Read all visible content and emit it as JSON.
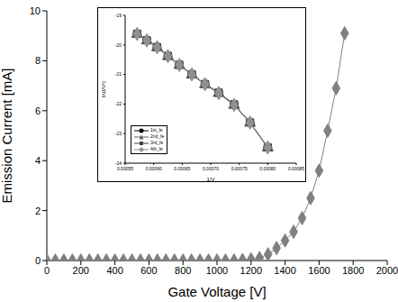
{
  "chart_data": [
    {
      "type": "line",
      "x_label": "Gate Voltage [V]",
      "y_label": "Emission Current [mA]",
      "x": [
        0,
        50,
        100,
        150,
        200,
        250,
        300,
        350,
        400,
        450,
        500,
        550,
        600,
        650,
        700,
        750,
        800,
        850,
        900,
        950,
        1000,
        1050,
        1100,
        1150,
        1200,
        1250,
        1300,
        1350,
        1400,
        1450,
        1500,
        1550,
        1600,
        1650,
        1700,
        1750
      ],
      "values": [
        0,
        0,
        0,
        0,
        0,
        0,
        0,
        0,
        0,
        0,
        0,
        0,
        0,
        0,
        0,
        0,
        0,
        0,
        0,
        0,
        0,
        0,
        0,
        0.02,
        0.05,
        0.1,
        0.25,
        0.5,
        0.8,
        1.15,
        1.7,
        2.5,
        3.6,
        5.2,
        6.9,
        9.1
      ],
      "color": "#808080",
      "marker": "diamond",
      "line_style": "solid",
      "xlim": [
        0,
        2000
      ],
      "xticks": [
        0,
        200,
        400,
        600,
        800,
        1000,
        1200,
        1400,
        1600,
        1800,
        2000
      ],
      "ylim": [
        0,
        10
      ],
      "yticks": [
        0,
        2,
        4,
        6,
        8,
        10
      ],
      "grid": false
    },
    {
      "type": "line",
      "x_label": "1/V",
      "y_label": "ln(I/V²)",
      "x": [
        0.000571,
        0.000588,
        0.000606,
        0.000625,
        0.000645,
        0.000667,
        0.00069,
        0.000714,
        0.000741,
        0.000769,
        0.0008
      ],
      "series": [
        {
          "name": "1st_fe",
          "color": "#000000",
          "marker": "circle",
          "line_style": "solid",
          "values": [
            -19.63,
            -19.85,
            -20.08,
            -20.38,
            -20.68,
            -21.0,
            -21.33,
            -21.62,
            -22.02,
            -22.63,
            -23.47
          ]
        },
        {
          "name": "2nd_fe",
          "color": "#606060",
          "marker": "triangle",
          "line_style": "solid",
          "values": [
            -19.64,
            -19.86,
            -20.09,
            -20.39,
            -20.69,
            -21.01,
            -21.34,
            -21.64,
            -22.04,
            -22.64,
            -23.48
          ]
        },
        {
          "name": "3rd_fe",
          "color": "#404040",
          "marker": "square",
          "line_style": "solid",
          "values": [
            -19.62,
            -19.84,
            -20.07,
            -20.37,
            -20.67,
            -20.99,
            -21.32,
            -21.61,
            -22.01,
            -22.62,
            -23.46
          ]
        },
        {
          "name": "4th_fe",
          "color": "#909090",
          "marker": "diamond",
          "line_style": "solid",
          "values": [
            -19.63,
            -19.85,
            -20.08,
            -20.38,
            -20.68,
            -21.0,
            -21.33,
            -21.63,
            -22.03,
            -22.63,
            -23.47
          ]
        }
      ],
      "legend": "lower left",
      "xlim": [
        0.00055,
        0.00085
      ],
      "xticks": [
        {
          "value": 0.00055,
          "label": "0.00055"
        },
        {
          "value": 0.0006,
          "label": "0.00060"
        },
        {
          "value": 0.00065,
          "label": "0.00065"
        },
        {
          "value": 0.0007,
          "label": "0.00070"
        },
        {
          "value": 0.00075,
          "label": "0.00075"
        },
        {
          "value": 0.0008,
          "label": "0.00080"
        },
        {
          "value": 0.00085,
          "label": "0.00085"
        }
      ],
      "ylim": [
        -24,
        -19
      ],
      "yticks": [
        -24,
        -23,
        -22,
        -21,
        -20,
        -19
      ],
      "grid": false
    }
  ]
}
